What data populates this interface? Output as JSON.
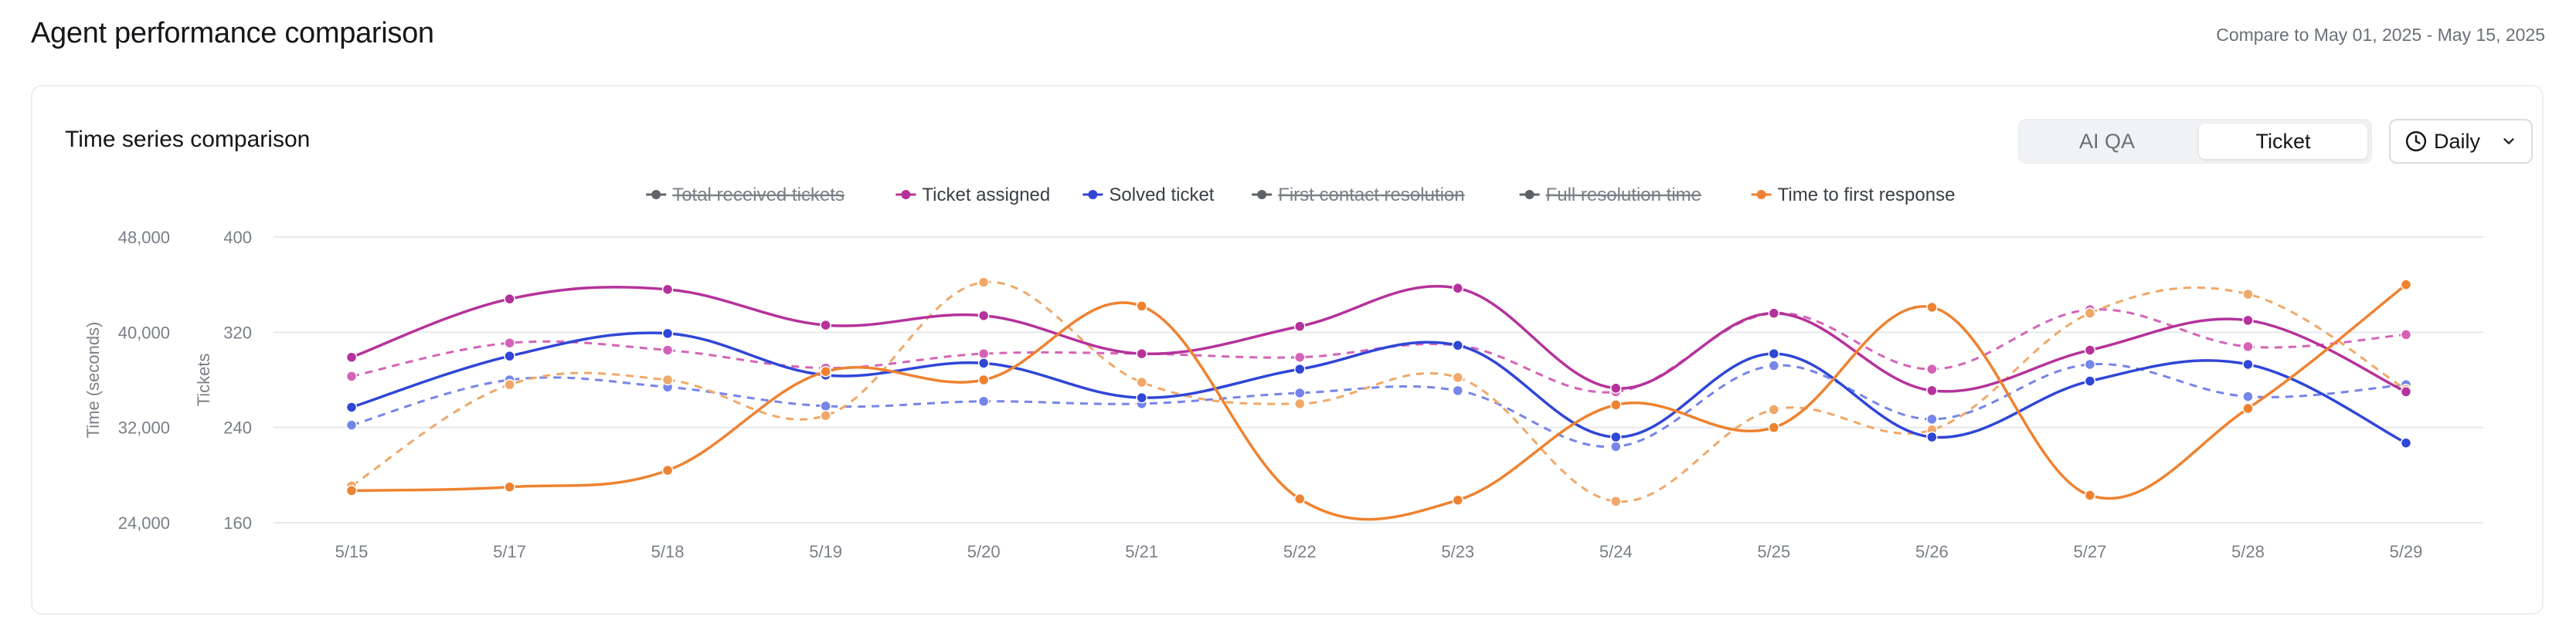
{
  "header": {
    "title": "Agent performance comparison",
    "compare_text": "Compare to May 01, 2025 - May 15, 2025"
  },
  "card": {
    "title": "Time series comparison",
    "segment": {
      "options": [
        "AI QA",
        "Ticket"
      ],
      "selected": "Ticket"
    },
    "period": {
      "label": "Daily",
      "icon": "clock-icon"
    }
  },
  "chart_data": {
    "type": "line",
    "categories": [
      "5/15",
      "5/17",
      "5/18",
      "5/19",
      "5/20",
      "5/21",
      "5/22",
      "5/23",
      "5/24",
      "5/25",
      "5/26",
      "5/27",
      "5/28",
      "5/29"
    ],
    "y_left": {
      "label": "Time (seconds)",
      "ticks": [
        "48,000",
        "40,000",
        "32,000",
        "24,000"
      ],
      "range": [
        24000,
        48000
      ]
    },
    "y_right": {
      "label": "Tickets",
      "ticks": [
        "400",
        "320",
        "240",
        "160"
      ],
      "range": [
        160,
        400
      ]
    },
    "grid": true,
    "legend_position": "top-center",
    "legend": [
      {
        "name": "Total received tickets",
        "color": "#5f6368",
        "enabled": false
      },
      {
        "name": "Ticket assigned",
        "color": "#b5329a",
        "enabled": true
      },
      {
        "name": "Solved ticket",
        "color": "#2f46d6",
        "enabled": true
      },
      {
        "name": "First contact resolution",
        "color": "#5f6368",
        "enabled": false
      },
      {
        "name": "Full resolution time",
        "color": "#5f6368",
        "enabled": false
      },
      {
        "name": "Time to first response",
        "color": "#ee8230",
        "enabled": true
      }
    ],
    "series": [
      {
        "name": "Ticket assigned",
        "axis": "right",
        "style": "solid",
        "color": "#b5329a",
        "values": [
          299,
          348,
          356,
          326,
          334,
          302,
          325,
          357,
          273,
          336,
          271,
          305,
          330,
          270
        ]
      },
      {
        "name": "Ticket assigned",
        "axis": "right",
        "style": "dashed",
        "color": "#d463b8",
        "values": [
          283,
          311,
          305,
          290,
          302,
          302,
          299,
          309,
          270,
          336,
          289,
          339,
          308,
          318
        ]
      },
      {
        "name": "Solved ticket",
        "axis": "right",
        "style": "solid",
        "color": "#2f46d6",
        "values": [
          257,
          300,
          319,
          284,
          294,
          265,
          289,
          309,
          232,
          302,
          232,
          279,
          293,
          227
        ]
      },
      {
        "name": "Solved ticket",
        "axis": "right",
        "style": "dashed",
        "color": "#7585e8",
        "values": [
          242,
          280,
          274,
          258,
          262,
          260,
          269,
          271,
          224,
          292,
          247,
          293,
          266,
          276
        ]
      },
      {
        "name": "Time to first response",
        "axis": "left",
        "style": "solid",
        "color": "#ee8230",
        "values": [
          26700,
          27000,
          28400,
          36700,
          36000,
          42200,
          26000,
          25900,
          33900,
          32000,
          42100,
          26300,
          33600,
          44000
        ]
      },
      {
        "name": "Time to first response",
        "axis": "left",
        "style": "dashed",
        "color": "#f0a868",
        "values": [
          27100,
          35600,
          36000,
          33000,
          44200,
          35800,
          34000,
          36200,
          25800,
          33500,
          31800,
          41600,
          43200,
          35200
        ]
      }
    ]
  }
}
